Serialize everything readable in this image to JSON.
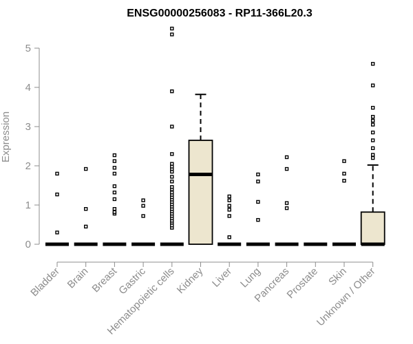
{
  "chart_data": {
    "type": "boxplot",
    "title": "ENSG00000256083 - RP11-366L20.3",
    "xlabel": "",
    "ylabel": "Expression",
    "ylim": [
      0,
      5.5
    ],
    "yticks": [
      0,
      1,
      2,
      3,
      4,
      5
    ],
    "grid": false,
    "box_fill": "#ede6cf",
    "categories": [
      "Bladder",
      "Brain",
      "Breast",
      "Gastric",
      "Hematopoietic cells",
      "Kidney",
      "Liver",
      "Lung",
      "Pancreas",
      "Prostate",
      "Skin",
      "Unknown / Other"
    ],
    "boxes": [
      {
        "q1": 0,
        "median": 0,
        "q3": 0,
        "whisker_low": 0,
        "whisker_high": 0,
        "outliers": [
          0.3,
          1.27,
          1.8
        ]
      },
      {
        "q1": 0,
        "median": 0,
        "q3": 0,
        "whisker_low": 0,
        "whisker_high": 0,
        "outliers": [
          0.45,
          0.9,
          1.92
        ]
      },
      {
        "q1": 0,
        "median": 0,
        "q3": 0,
        "whisker_low": 0,
        "whisker_high": 0,
        "outliers": [
          0.78,
          0.82,
          0.9,
          1.15,
          1.32,
          1.48,
          1.8,
          1.95,
          2.12,
          2.27
        ]
      },
      {
        "q1": 0,
        "median": 0,
        "q3": 0,
        "whisker_low": 0,
        "whisker_high": 0,
        "outliers": [
          0.72,
          0.98,
          1.12
        ]
      },
      {
        "q1": 0,
        "median": 0,
        "q3": 0,
        "whisker_low": 0,
        "whisker_high": 0,
        "outliers": [
          0.42,
          0.48,
          0.55,
          0.6,
          0.66,
          0.72,
          0.78,
          0.84,
          0.9,
          0.96,
          1.02,
          1.08,
          1.14,
          1.2,
          1.26,
          1.32,
          1.4,
          1.46,
          1.6,
          1.72,
          1.85,
          1.92,
          1.98,
          2.05,
          2.3,
          3.0,
          3.9,
          5.35,
          5.5
        ]
      },
      {
        "q1": 0,
        "median": 1.78,
        "q3": 2.65,
        "whisker_low": 0,
        "whisker_high": 3.82,
        "outliers": []
      },
      {
        "q1": 0,
        "median": 0,
        "q3": 0,
        "whisker_low": 0,
        "whisker_high": 0,
        "outliers": [
          0.18,
          0.72,
          0.88,
          0.98,
          1.12,
          1.22
        ]
      },
      {
        "q1": 0,
        "median": 0,
        "q3": 0,
        "whisker_low": 0,
        "whisker_high": 0,
        "outliers": [
          0.62,
          1.08,
          1.6,
          1.78
        ]
      },
      {
        "q1": 0,
        "median": 0,
        "q3": 0,
        "whisker_low": 0,
        "whisker_high": 0,
        "outliers": [
          0.92,
          1.05,
          1.92,
          2.22
        ]
      },
      {
        "q1": 0,
        "median": 0,
        "q3": 0,
        "whisker_low": 0,
        "whisker_high": 0,
        "outliers": []
      },
      {
        "q1": 0,
        "median": 0,
        "q3": 0,
        "whisker_low": 0,
        "whisker_high": 0,
        "outliers": [
          1.62,
          1.8,
          2.12
        ]
      },
      {
        "q1": 0,
        "median": 0,
        "q3": 0.82,
        "whisker_low": 0,
        "whisker_high": 2.02,
        "outliers": [
          2.2,
          2.28,
          2.45,
          2.65,
          2.85,
          3.05,
          3.15,
          3.25,
          3.48,
          4.05,
          4.6
        ]
      }
    ]
  }
}
